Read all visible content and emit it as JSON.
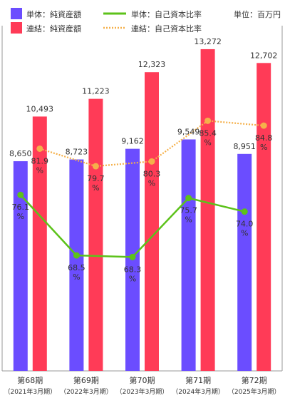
{
  "chart_data": {
    "type": "bar",
    "unit_label": "単位：百万円",
    "categories": [
      {
        "term": "第68期",
        "date": "（2021年3月期）"
      },
      {
        "term": "第69期",
        "date": "（2022年3月期）"
      },
      {
        "term": "第70期",
        "date": "（2023年3月期）"
      },
      {
        "term": "第71期",
        "date": "（2024年3月期）"
      },
      {
        "term": "第72期",
        "date": "（2025年3月期）"
      }
    ],
    "bar_series": [
      {
        "name": "単体：純資産額",
        "color": "#6b4dff",
        "values": [
          8650,
          8723,
          9162,
          9549,
          8951
        ],
        "labels": [
          "8,650",
          "8,723",
          "9,162",
          "9,549",
          "8,951"
        ]
      },
      {
        "name": "連結：純資産額",
        "color": "#ff3b57",
        "values": [
          10493,
          11223,
          12323,
          13272,
          12702
        ],
        "labels": [
          "10,493",
          "11,223",
          "12,323",
          "13,272",
          "12,702"
        ]
      }
    ],
    "line_series": [
      {
        "name": "単体：自己資本比率",
        "color": "#5cc21a",
        "style": "solid",
        "values": [
          76.1,
          68.5,
          68.3,
          75.7,
          74.0
        ],
        "labels": [
          "76.1",
          "68.5",
          "68.3",
          "75.7",
          "74.0"
        ],
        "suffix": "%"
      },
      {
        "name": "連結：自己資本比率",
        "color": "#f5b04a",
        "style": "dotted",
        "values": [
          81.9,
          79.7,
          80.3,
          85.4,
          84.8
        ],
        "labels": [
          "81.9",
          "79.7",
          "80.3",
          "85.4",
          "84.8"
        ],
        "suffix": "%"
      }
    ],
    "bar_ylim": [
      0,
      13800
    ],
    "line_ylim": [
      54,
      96
    ],
    "legend_position": "top",
    "grid": false
  }
}
